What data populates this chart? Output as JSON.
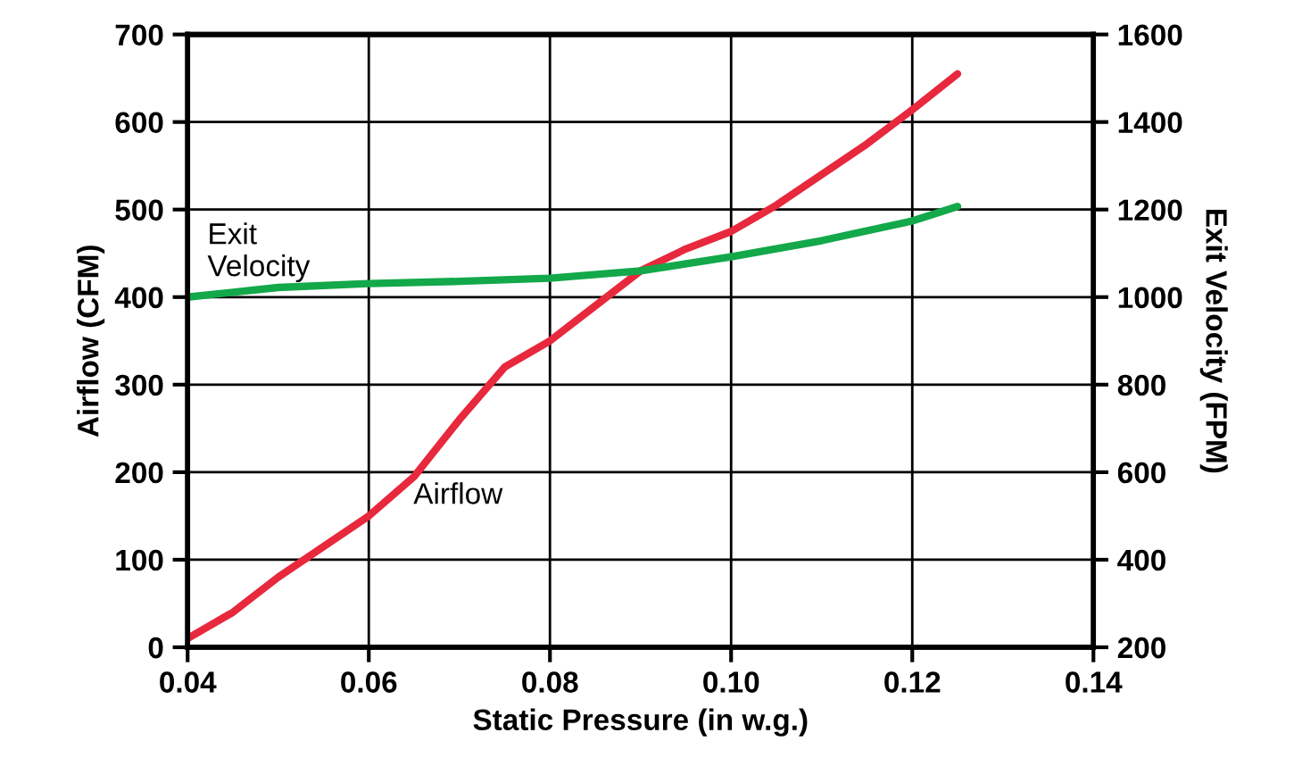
{
  "chart_data": {
    "type": "line",
    "xlabel": "Static Pressure (in w.g.)",
    "ylabel": "Airflow (CFM)",
    "y2label": "Exit Velocity (FPM)",
    "xlim": [
      0.04,
      0.14
    ],
    "xticks": [
      {
        "value": 0.04,
        "label": "0.04"
      },
      {
        "value": 0.06,
        "label": "0.06"
      },
      {
        "value": 0.08,
        "label": "0.08"
      },
      {
        "value": 0.1,
        "label": "0.10"
      },
      {
        "value": 0.12,
        "label": "0.12"
      },
      {
        "value": 0.14,
        "label": "0.14"
      }
    ],
    "ylim": [
      0,
      700
    ],
    "yticks": [
      0,
      100,
      200,
      300,
      400,
      500,
      600,
      700
    ],
    "y2lim": [
      200,
      1600
    ],
    "y2ticks": [
      200,
      400,
      600,
      800,
      1000,
      1200,
      1400,
      1600
    ],
    "grid": true,
    "legend": false,
    "series": [
      {
        "name": "Airflow",
        "color": "#e8283c",
        "x": [
          0.04,
          0.045,
          0.05,
          0.055,
          0.06,
          0.065,
          0.07,
          0.075,
          0.08,
          0.085,
          0.09,
          0.095,
          0.1,
          0.105,
          0.11,
          0.115,
          0.12,
          0.125
        ],
        "values": [
          10,
          40,
          80,
          115,
          150,
          195,
          260,
          320,
          350,
          390,
          430,
          455,
          475,
          505,
          540,
          575,
          614,
          655
        ]
      },
      {
        "name": "Exit\nVelocity",
        "axis": "y2",
        "color": "#13a84a",
        "x": [
          0.04,
          0.05,
          0.06,
          0.07,
          0.08,
          0.09,
          0.1,
          0.11,
          0.12,
          0.125
        ],
        "values": [
          1000,
          1022,
          1031,
          1036,
          1043,
          1060,
          1092,
          1129,
          1174,
          1207
        ]
      }
    ]
  }
}
